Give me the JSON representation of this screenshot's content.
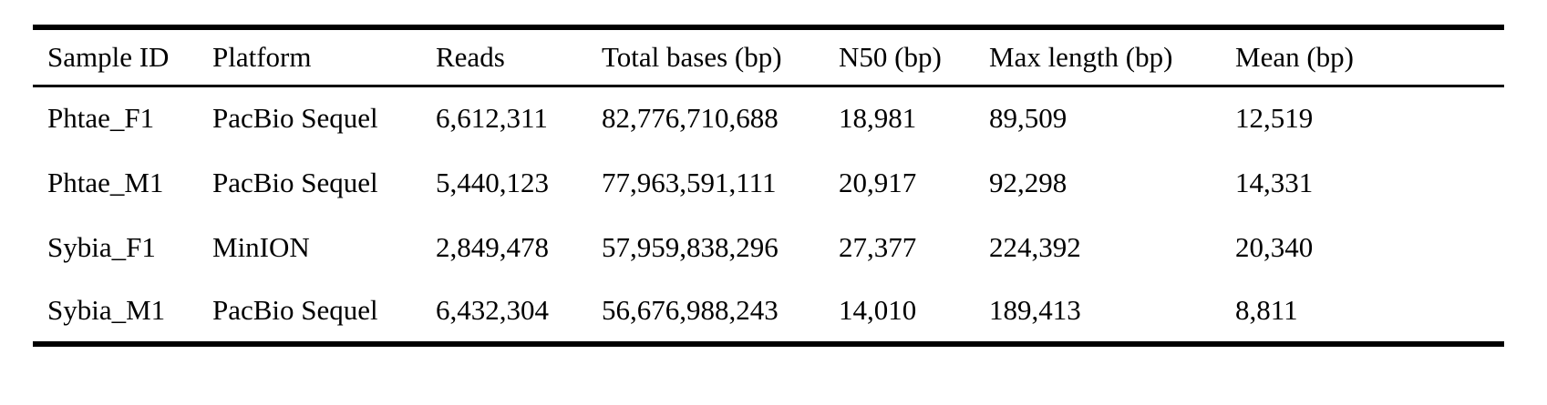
{
  "table": {
    "description": "Long-read sequencing statistics table",
    "columns": [
      "Sample ID",
      "Platform",
      "Reads",
      "Total bases (bp)",
      "N50 (bp)",
      "Max length (bp)",
      "Mean (bp)"
    ],
    "rows": [
      [
        "Phtae_F1",
        "PacBio Sequel",
        "6,612,311",
        "82,776,710,688",
        "18,981",
        "89,509",
        "12,519"
      ],
      [
        "Phtae_M1",
        "PacBio Sequel",
        "5,440,123",
        "77,963,591,111",
        "20,917",
        "92,298",
        "14,331"
      ],
      [
        "Sybia_F1",
        "MinION",
        "2,849,478",
        "57,959,838,296",
        "27,377",
        "224,392",
        "20,340"
      ],
      [
        "Sybia_M1",
        "PacBio Sequel",
        "6,432,304",
        "56,676,988,243",
        "14,010",
        "189,413",
        "8,811"
      ]
    ]
  },
  "colors": {
    "text": "#000000",
    "background": "#ffffff",
    "rule": "#000000"
  },
  "chart_data": {
    "type": "table",
    "title": "",
    "categories": [
      "Phtae_F1",
      "Phtae_M1",
      "Sybia_F1",
      "Sybia_M1"
    ],
    "series": [
      {
        "name": "Reads",
        "values": [
          6612311,
          5440123,
          2849478,
          6432304
        ]
      },
      {
        "name": "Total bases (bp)",
        "values": [
          82776710688,
          77963591111,
          57959838296,
          56676988243
        ]
      },
      {
        "name": "N50 (bp)",
        "values": [
          18981,
          20917,
          27377,
          14010
        ]
      },
      {
        "name": "Max length (bp)",
        "values": [
          89509,
          92298,
          224392,
          189413
        ]
      },
      {
        "name": "Mean (bp)",
        "values": [
          12519,
          14331,
          20340,
          8811
        ]
      }
    ],
    "platforms": [
      "PacBio Sequel",
      "PacBio Sequel",
      "MinION",
      "PacBio Sequel"
    ]
  }
}
